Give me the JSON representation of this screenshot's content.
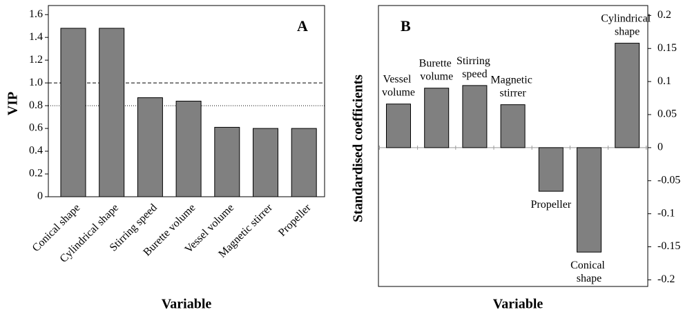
{
  "chart_data": [
    {
      "type": "bar",
      "title": "A",
      "xlabel": "Variable",
      "ylabel": "VIP",
      "categories": [
        "Conical shape",
        "Cylindrical shape",
        "Stirring speed",
        "Burette volume",
        "Vessel volume",
        "Magnetic stirrer",
        "Propeller"
      ],
      "values": [
        1.48,
        1.48,
        0.87,
        0.84,
        0.61,
        0.6,
        0.6
      ],
      "color": "#808080",
      "ylim": [
        0,
        1.68
      ],
      "yticks": [
        0,
        0.2,
        0.4,
        0.6,
        0.8,
        {
          "value": 1,
          "label": "1.0"
        },
        1.2,
        1.4,
        1.6
      ],
      "reference_lines": [
        {
          "value": 1,
          "style": "dashed"
        },
        {
          "value": 0.8,
          "style": "dotted"
        }
      ],
      "y_axis_side": "left",
      "category_labels": "axis"
    },
    {
      "type": "bar",
      "title": "B",
      "xlabel": "Variable",
      "ylabel": "Standardised coefficients",
      "categories": [
        "Vessel volume",
        "Burette volume",
        "Stirring speed",
        "Magnetic stirrer",
        "Propeller",
        "Conical shape",
        "Cylindrical shape"
      ],
      "values": [
        0.066,
        0.09,
        0.094,
        0.065,
        -0.066,
        -0.158,
        0.158
      ],
      "color": "#808080",
      "ylim": [
        -0.21,
        0.215
      ],
      "yticks": [
        0.2,
        0.15,
        0.1,
        0.05,
        0,
        -0.05,
        -0.1,
        -0.15,
        -0.2
      ],
      "y_axis_side": "right",
      "category_labels": "bar"
    }
  ]
}
